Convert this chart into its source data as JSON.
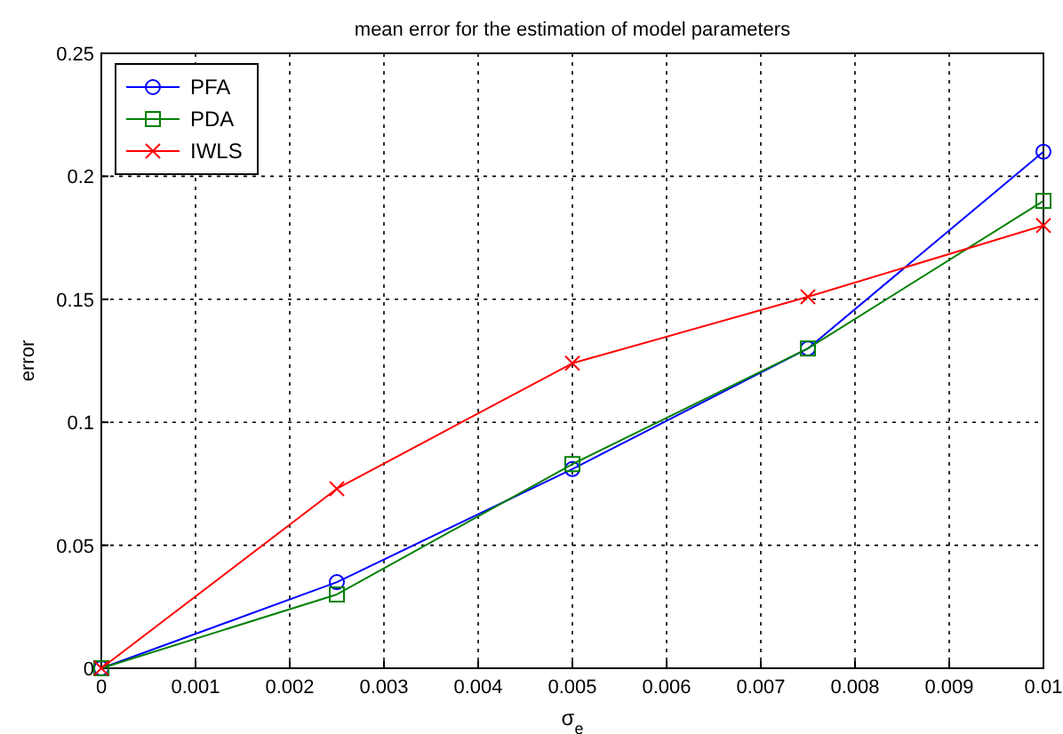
{
  "chart_data": {
    "type": "line",
    "title": "mean error for the estimation of model parameters",
    "xlabel": "σ$_{e}$",
    "ylabel": "error",
    "x": [
      0,
      0.0025,
      0.005,
      0.0075,
      0.01
    ],
    "series": [
      {
        "name": "PFA",
        "color": "#0000ff",
        "marker": "circle",
        "values": [
          0,
          0.035,
          0.081,
          0.13,
          0.21
        ]
      },
      {
        "name": "PDA",
        "color": "#008000",
        "marker": "square",
        "values": [
          0,
          0.03,
          0.083,
          0.13,
          0.19
        ]
      },
      {
        "name": "IWLS",
        "color": "#ff0000",
        "marker": "cross",
        "values": [
          0,
          0.073,
          0.124,
          0.151,
          0.18
        ]
      }
    ],
    "xlim": [
      0,
      0.01
    ],
    "xticks": [
      0,
      0.001,
      0.002,
      0.003,
      0.004,
      0.005,
      0.006,
      0.007,
      0.008,
      0.009,
      0.01
    ],
    "ylim": [
      0,
      0.25
    ],
    "yticks": [
      0,
      0.05,
      0.1,
      0.15,
      0.2,
      0.25
    ],
    "grid": true,
    "legend": "top left",
    "line_style": "solid"
  }
}
